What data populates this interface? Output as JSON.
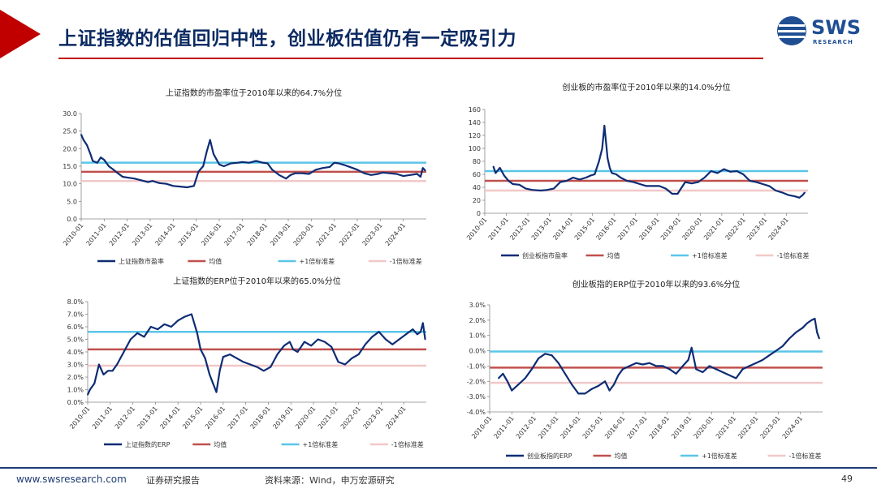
{
  "header": {
    "title": "上证指数的估值回归中性，创业板估值仍有一定吸引力",
    "logo_text": "SWS",
    "logo_sub": "RESEARCH"
  },
  "footer": {
    "url": "www.swsresearch.com",
    "report_label": "证券研究报告",
    "source": "资料来源：Wind，申万宏源研究",
    "page": "49"
  },
  "colors": {
    "series": "#0d2c74",
    "mean": "#c0504d",
    "plus1": "#5bc5e8",
    "minus1": "#f2c8c8",
    "brand_red": "#c00000",
    "brand_navy": "#0b2a62"
  },
  "chart_data": [
    {
      "id": "sh_pe",
      "type": "line",
      "title": "上证指数的市盈率位于2010年以来的64.7%分位",
      "x_categories": [
        "2010-01",
        "2011-01",
        "2012-01",
        "2013-01",
        "2014-01",
        "2015-01",
        "2016-01",
        "2017-01",
        "2018-01",
        "2019-01",
        "2020-01",
        "2021-01",
        "2022-01",
        "2023-01",
        "2024-01"
      ],
      "x_range": [
        2010.0,
        2025.0
      ],
      "ylim": [
        0,
        30
      ],
      "yticks": [
        0,
        5,
        10,
        15,
        20,
        25,
        30
      ],
      "ytick_labels": [
        "0.0",
        "5.0",
        "10.0",
        "15.0",
        "20.0",
        "25.0",
        "30.0"
      ],
      "legend": [
        "上证指数市盈率",
        "均值",
        "+1倍标准差",
        "-1倍标准差"
      ],
      "reference_lines": {
        "mean": 13.4,
        "plus1": 16.0,
        "minus1": 10.8
      },
      "series": [
        {
          "name": "上证指数市盈率",
          "x": [
            2010.0,
            2010.1,
            2010.25,
            2010.4,
            2010.5,
            2010.7,
            2010.85,
            2011.0,
            2011.2,
            2011.4,
            2011.6,
            2011.8,
            2012.0,
            2012.3,
            2012.6,
            2012.9,
            2013.1,
            2013.4,
            2013.7,
            2014.0,
            2014.3,
            2014.6,
            2014.9,
            2015.1,
            2015.3,
            2015.45,
            2015.6,
            2015.75,
            2016.0,
            2016.2,
            2016.5,
            2016.8,
            2017.0,
            2017.3,
            2017.6,
            2017.9,
            2018.1,
            2018.3,
            2018.6,
            2018.9,
            2019.1,
            2019.3,
            2019.6,
            2019.9,
            2020.2,
            2020.5,
            2020.8,
            2021.0,
            2021.2,
            2021.5,
            2021.8,
            2022.0,
            2022.3,
            2022.6,
            2022.9,
            2023.1,
            2023.4,
            2023.7,
            2024.0,
            2024.3,
            2024.6,
            2024.75,
            2024.85,
            2024.95
          ],
          "y": [
            24.0,
            22.5,
            21.0,
            18.5,
            16.5,
            16.0,
            17.5,
            16.8,
            15.0,
            14.0,
            13.0,
            12.0,
            11.8,
            11.5,
            11.0,
            10.5,
            10.8,
            10.2,
            10.0,
            9.4,
            9.2,
            9.0,
            9.4,
            13.5,
            15.0,
            19.0,
            22.5,
            18.5,
            15.5,
            15.0,
            15.8,
            16.0,
            16.2,
            16.0,
            16.5,
            16.0,
            15.8,
            14.0,
            12.5,
            11.5,
            12.5,
            13.0,
            13.0,
            12.8,
            14.0,
            14.5,
            14.8,
            16.0,
            15.8,
            15.2,
            14.5,
            14.0,
            13.0,
            12.5,
            12.8,
            13.2,
            13.0,
            12.8,
            12.2,
            12.5,
            12.8,
            12.0,
            14.5,
            13.8
          ]
        }
      ]
    },
    {
      "id": "cyb_pe",
      "type": "line",
      "title": "创业板的市盈率位于2010年以来的14.0%分位",
      "x_categories": [
        "2010-01",
        "2011-01",
        "2012-01",
        "2013-01",
        "2014-01",
        "2015-01",
        "2016-01",
        "2017-01",
        "2018-01",
        "2019-01",
        "2020-01",
        "2021-01",
        "2022-01",
        "2023-01",
        "2024-01"
      ],
      "x_range": [
        2010.0,
        2025.0
      ],
      "ylim": [
        0,
        160
      ],
      "yticks": [
        0,
        20,
        40,
        60,
        80,
        100,
        120,
        140,
        160
      ],
      "ytick_labels": [
        "0",
        "20",
        "40",
        "60",
        "80",
        "100",
        "120",
        "140",
        "160"
      ],
      "legend": [
        "创业板指市盈率",
        "均值",
        "+1倍标准差",
        "-1倍标准差"
      ],
      "reference_lines": {
        "mean": 50,
        "plus1": 65,
        "minus1": 35
      },
      "series": [
        {
          "name": "创业板指市盈率",
          "x": [
            2010.4,
            2010.5,
            2010.7,
            2010.9,
            2011.1,
            2011.3,
            2011.6,
            2011.9,
            2012.2,
            2012.6,
            2012.9,
            2013.2,
            2013.5,
            2013.8,
            2014.1,
            2014.4,
            2014.7,
            2014.9,
            2015.1,
            2015.3,
            2015.45,
            2015.55,
            2015.7,
            2015.8,
            2015.9,
            2016.1,
            2016.3,
            2016.6,
            2016.9,
            2017.2,
            2017.5,
            2017.8,
            2018.1,
            2018.4,
            2018.7,
            2018.95,
            2019.1,
            2019.3,
            2019.6,
            2019.9,
            2020.2,
            2020.5,
            2020.8,
            2021.1,
            2021.4,
            2021.7,
            2022.0,
            2022.3,
            2022.6,
            2022.9,
            2023.2,
            2023.5,
            2023.8,
            2024.1,
            2024.4,
            2024.6,
            2024.75,
            2024.85
          ],
          "y": [
            72,
            62,
            70,
            58,
            50,
            45,
            44,
            38,
            36,
            35,
            36,
            38,
            48,
            50,
            55,
            52,
            55,
            58,
            60,
            80,
            100,
            135,
            85,
            70,
            62,
            60,
            55,
            50,
            48,
            45,
            42,
            42,
            42,
            38,
            30,
            30,
            38,
            48,
            46,
            48,
            55,
            65,
            62,
            68,
            64,
            65,
            60,
            50,
            48,
            45,
            42,
            35,
            32,
            28,
            26,
            24,
            28,
            32
          ]
        }
      ]
    },
    {
      "id": "sh_erp",
      "type": "line",
      "title": "上证指数的ERP位于2010年以来的65.0%分位",
      "x_categories": [
        "2010-01",
        "2011-01",
        "2012-01",
        "2013-01",
        "2014-01",
        "2015-01",
        "2016-01",
        "2017-01",
        "2018-01",
        "2019-01",
        "2020-01",
        "2021-01",
        "2022-01",
        "2023-01",
        "2024-01"
      ],
      "x_range": [
        2010.0,
        2025.0
      ],
      "ylim": [
        0,
        8
      ],
      "yticks": [
        0,
        1,
        2,
        3,
        4,
        5,
        6,
        7,
        8
      ],
      "ytick_labels": [
        "0.0%",
        "1.0%",
        "2.0%",
        "3.0%",
        "4.0%",
        "5.0%",
        "6.0%",
        "7.0%",
        "8.0%"
      ],
      "legend": [
        "上证指数的ERP",
        "均值",
        "+1倍标准差",
        "-1倍标准差"
      ],
      "reference_lines": {
        "mean": 4.2,
        "plus1": 5.6,
        "minus1": 2.9
      },
      "series": [
        {
          "name": "上证指数的ERP",
          "x": [
            2010.0,
            2010.1,
            2010.3,
            2010.5,
            2010.7,
            2010.9,
            2011.1,
            2011.3,
            2011.6,
            2011.9,
            2012.2,
            2012.5,
            2012.8,
            2013.1,
            2013.4,
            2013.7,
            2014.0,
            2014.3,
            2014.6,
            2014.85,
            2015.0,
            2015.2,
            2015.4,
            2015.55,
            2015.7,
            2015.85,
            2016.0,
            2016.3,
            2016.6,
            2016.9,
            2017.2,
            2017.5,
            2017.8,
            2018.1,
            2018.4,
            2018.7,
            2018.95,
            2019.1,
            2019.3,
            2019.6,
            2019.9,
            2020.2,
            2020.5,
            2020.8,
            2021.1,
            2021.4,
            2021.7,
            2022.0,
            2022.3,
            2022.6,
            2022.9,
            2023.2,
            2023.5,
            2023.8,
            2024.1,
            2024.4,
            2024.6,
            2024.75,
            2024.85,
            2024.95
          ],
          "y": [
            0.6,
            1.0,
            1.5,
            3.0,
            2.2,
            2.5,
            2.5,
            3.0,
            4.0,
            5.0,
            5.5,
            5.2,
            6.0,
            5.8,
            6.2,
            6.0,
            6.5,
            6.8,
            7.0,
            5.5,
            4.2,
            3.5,
            2.2,
            1.5,
            0.8,
            2.5,
            3.6,
            3.8,
            3.5,
            3.2,
            3.0,
            2.8,
            2.5,
            2.8,
            3.8,
            4.5,
            4.8,
            4.2,
            4.0,
            4.8,
            4.5,
            5.0,
            4.8,
            4.4,
            3.2,
            3.0,
            3.5,
            3.8,
            4.6,
            5.2,
            5.6,
            5.0,
            4.6,
            5.0,
            5.4,
            5.8,
            5.4,
            5.6,
            6.3,
            5.0
          ]
        }
      ]
    },
    {
      "id": "cyb_erp",
      "type": "line",
      "title": "创业板指的ERP位于2010年以来的93.6%分位",
      "x_categories": [
        "2010-01",
        "2011-01",
        "2012-01",
        "2013-01",
        "2014-01",
        "2015-01",
        "2016-01",
        "2017-01",
        "2018-01",
        "2019-01",
        "2020-01",
        "2021-01",
        "2022-01",
        "2023-01",
        "2024-01"
      ],
      "x_range": [
        2010.0,
        2025.0
      ],
      "ylim": [
        -4,
        3
      ],
      "yticks": [
        -4,
        -3,
        -2,
        -1,
        0,
        1,
        2,
        3
      ],
      "ytick_labels": [
        "-4.0%",
        "-3.0%",
        "-2.0%",
        "-1.0%",
        "0.0%",
        "1.0%",
        "2.0%",
        "3.0%"
      ],
      "legend": [
        "创业板指的ERP",
        "均值",
        "+1倍标准差",
        "-1倍标准差"
      ],
      "reference_lines": {
        "mean": -1.1,
        "plus1": -0.05,
        "minus1": -2.1
      },
      "series": [
        {
          "name": "创业板指的ERP",
          "x": [
            2010.4,
            2010.6,
            2010.8,
            2011.0,
            2011.3,
            2011.6,
            2011.9,
            2012.2,
            2012.5,
            2012.8,
            2013.1,
            2013.4,
            2013.7,
            2014.0,
            2014.3,
            2014.6,
            2014.9,
            2015.2,
            2015.4,
            2015.6,
            2015.8,
            2016.0,
            2016.3,
            2016.6,
            2016.9,
            2017.2,
            2017.5,
            2017.8,
            2018.1,
            2018.4,
            2018.7,
            2018.95,
            2019.1,
            2019.3,
            2019.6,
            2019.9,
            2020.2,
            2020.5,
            2020.8,
            2021.1,
            2021.4,
            2021.7,
            2022.0,
            2022.3,
            2022.6,
            2022.9,
            2023.2,
            2023.5,
            2023.8,
            2024.1,
            2024.3,
            2024.5,
            2024.65,
            2024.75,
            2024.85
          ],
          "y": [
            -1.8,
            -1.5,
            -2.0,
            -2.6,
            -2.2,
            -1.8,
            -1.2,
            -0.5,
            -0.2,
            -0.3,
            -0.8,
            -1.5,
            -2.2,
            -2.8,
            -2.8,
            -2.5,
            -2.3,
            -2.0,
            -2.6,
            -2.2,
            -1.6,
            -1.2,
            -1.0,
            -0.8,
            -0.9,
            -0.8,
            -1.0,
            -1.0,
            -1.2,
            -1.5,
            -1.0,
            -0.6,
            0.2,
            -1.2,
            -1.4,
            -1.0,
            -1.2,
            -1.4,
            -1.6,
            -1.8,
            -1.2,
            -1.0,
            -0.8,
            -0.6,
            -0.3,
            0.0,
            0.3,
            0.8,
            1.2,
            1.5,
            1.8,
            2.0,
            2.1,
            1.2,
            0.8
          ]
        }
      ]
    }
  ]
}
